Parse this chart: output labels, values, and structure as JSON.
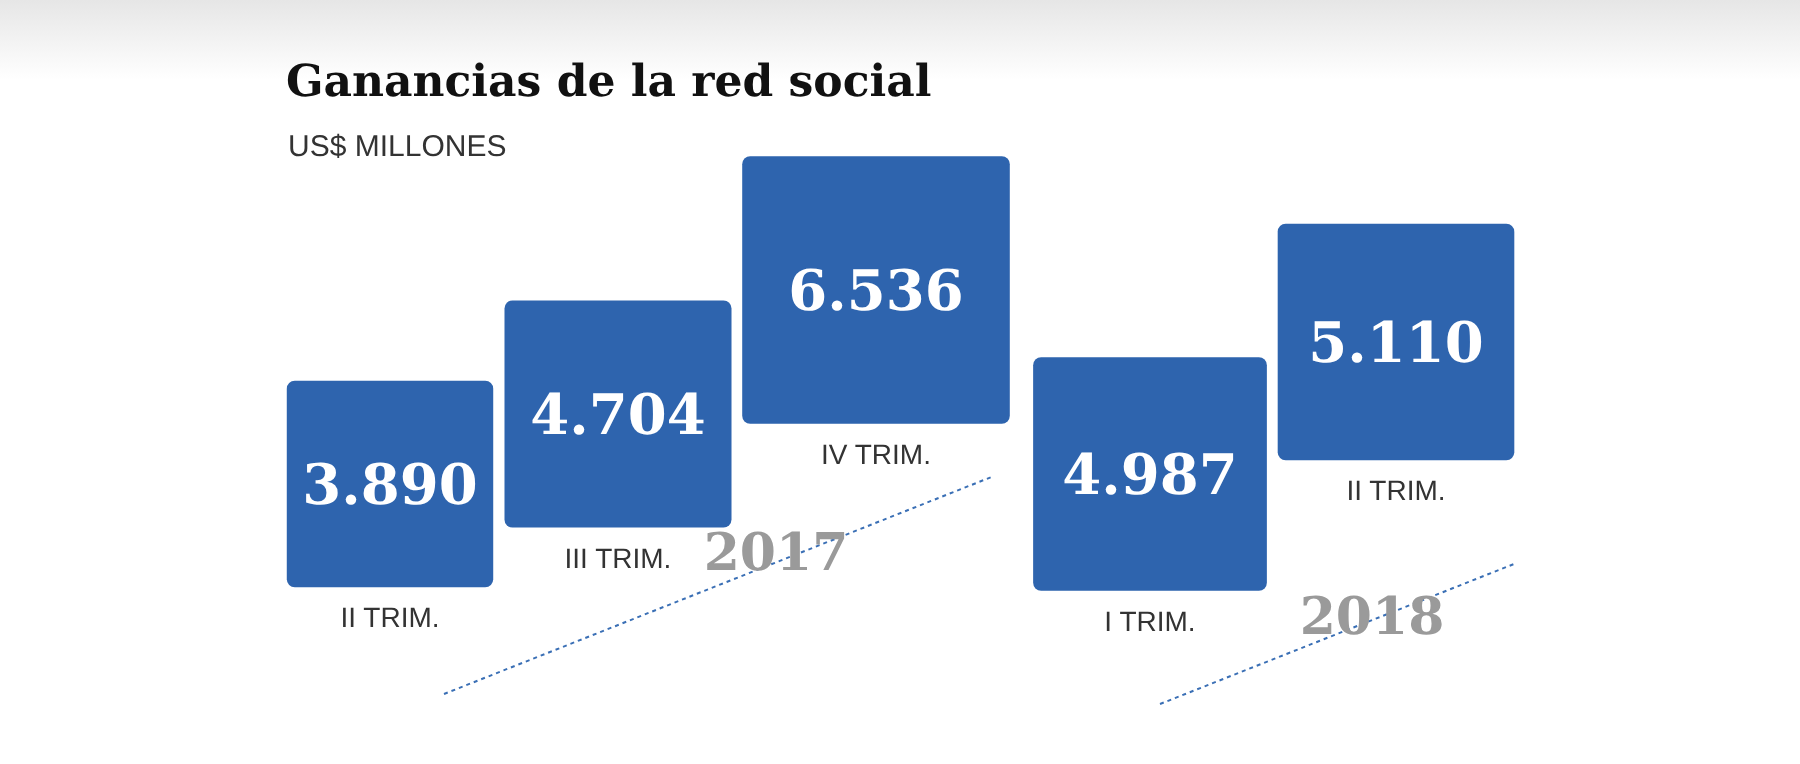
{
  "chart_data": {
    "type": "other",
    "title": "Ganancias de la red social",
    "subtitle": "US$ MILLONES",
    "categories": [
      "II TRIM.",
      "III TRIM.",
      "IV TRIM.",
      "I TRIM.",
      "II TRIM."
    ],
    "values": [
      3890,
      4704,
      6536,
      4987,
      5110
    ],
    "value_labels": [
      "3.890",
      "4.704",
      "6.536",
      "4.987",
      "5.110"
    ],
    "color": "#2e64ae",
    "annotations": [
      "2017",
      "2018"
    ]
  }
}
